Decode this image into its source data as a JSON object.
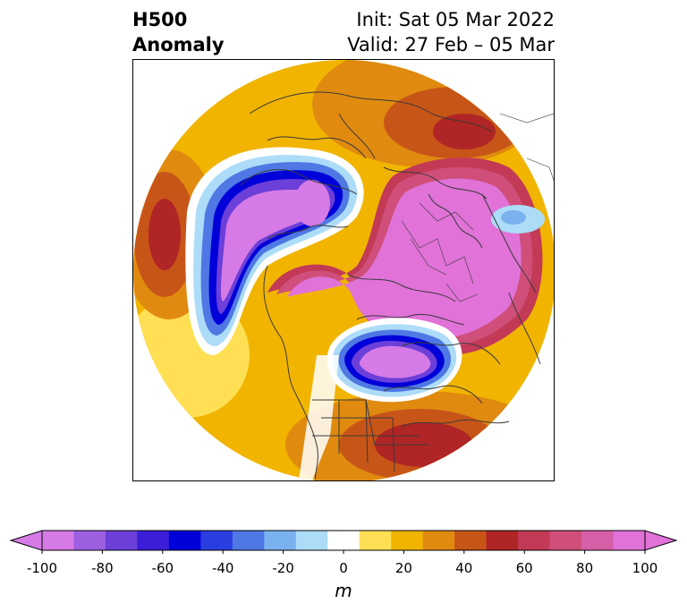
{
  "title": {
    "left_line1": "H500",
    "left_line2": "Anomaly",
    "right_line1": "Init: Sat 05 Mar 2022",
    "right_line2": "Valid: 27 Feb – 05 Mar"
  },
  "map": {
    "projection": "polar-stereographic-north",
    "field": "500 hPa geopotential height anomaly",
    "features": [
      "filled-anomaly-contours",
      "coastlines",
      "country-borders",
      "state-borders"
    ]
  },
  "colorbar": {
    "unit": "m",
    "extend": "both",
    "ticks": [
      "-100",
      "-80",
      "-60",
      "-40",
      "-20",
      "0",
      "20",
      "40",
      "60",
      "80",
      "100"
    ],
    "levels": [
      -100,
      -90,
      -80,
      -70,
      -60,
      -50,
      -40,
      -30,
      -20,
      -10,
      10,
      20,
      30,
      40,
      50,
      60,
      70,
      80,
      90,
      100
    ],
    "colors": [
      "#d57ae6",
      "#9b5fe0",
      "#6b3fd8",
      "#3a1ed8",
      "#0000d8",
      "#2a3ee0",
      "#4f78e4",
      "#7ab2f0",
      "#acdcf8",
      "#ffffff",
      "#ffe055",
      "#f1b400",
      "#e08a10",
      "#c85518",
      "#b02525",
      "#c23a55",
      "#cf4f7a",
      "#d65fa8",
      "#e072d8"
    ],
    "under_color": "#d57ae6",
    "over_color": "#e072d8"
  }
}
